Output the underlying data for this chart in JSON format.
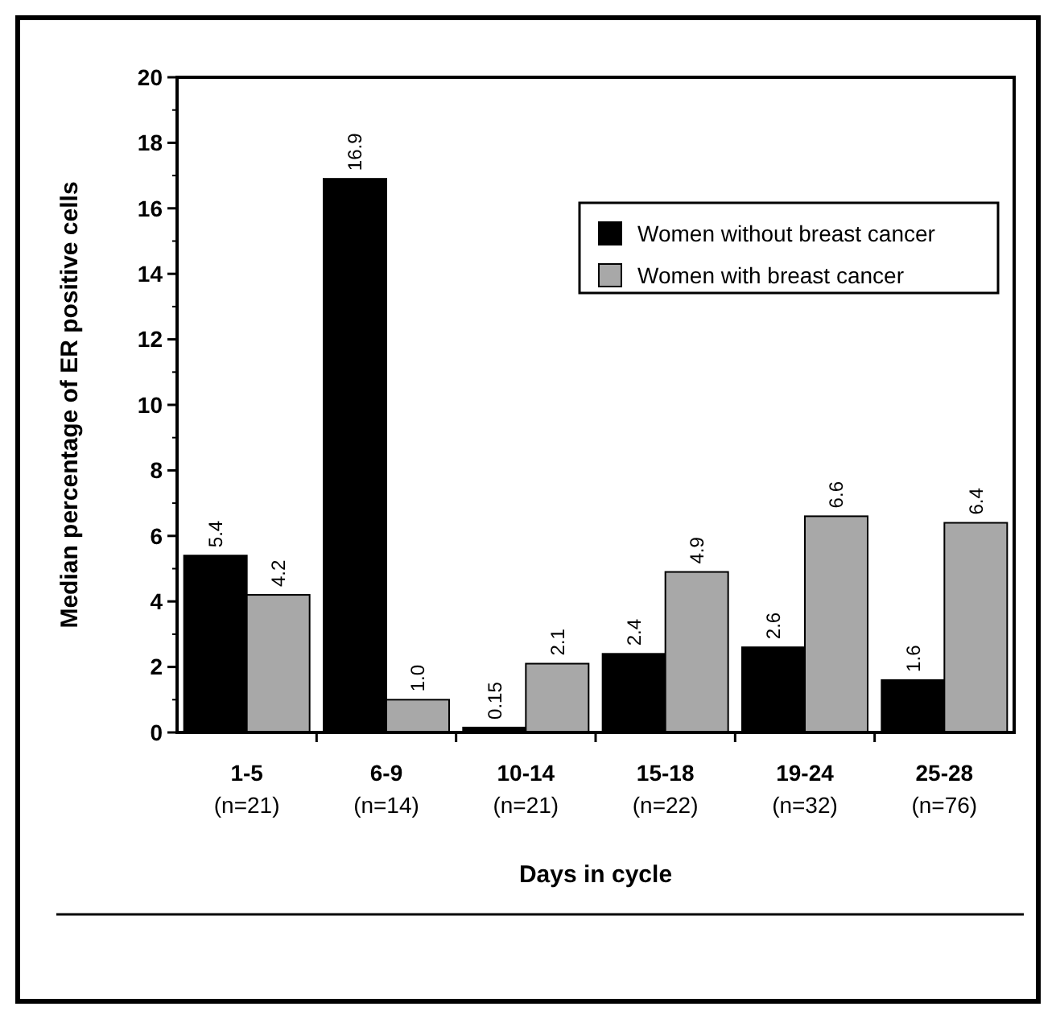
{
  "chart_data": {
    "type": "bar",
    "xlabel": "Days in cycle",
    "ylabel": "Median percentage of ER positive cells",
    "categories": [
      "1-5\n(n=21)",
      "6-9\n(n=14)",
      "10-14\n(n=21)",
      "15-18\n(n=22)",
      "19-24\n(n=32)",
      "25-28\n(n=76)"
    ],
    "series": [
      {
        "name": "Women without breast cancer",
        "color": "#000000",
        "values": [
          5.4,
          16.9,
          0.15,
          2.4,
          2.6,
          1.6
        ],
        "value_labels": [
          "5.4",
          "16.9",
          "0.15",
          "2.4",
          "2.6",
          "1.6"
        ]
      },
      {
        "name": "Women with breast cancer",
        "color": "#a8a8a8",
        "values": [
          4.2,
          1.0,
          2.1,
          4.9,
          6.6,
          6.4
        ],
        "value_labels": [
          "4.2",
          "1.0",
          "2.1",
          "4.9",
          "6.6",
          "6.4"
        ]
      }
    ],
    "ylim": [
      0,
      20
    ],
    "yticks": [
      0,
      2,
      4,
      6,
      8,
      10,
      12,
      14,
      16,
      18,
      20
    ],
    "grid": false,
    "legend": "top right"
  }
}
